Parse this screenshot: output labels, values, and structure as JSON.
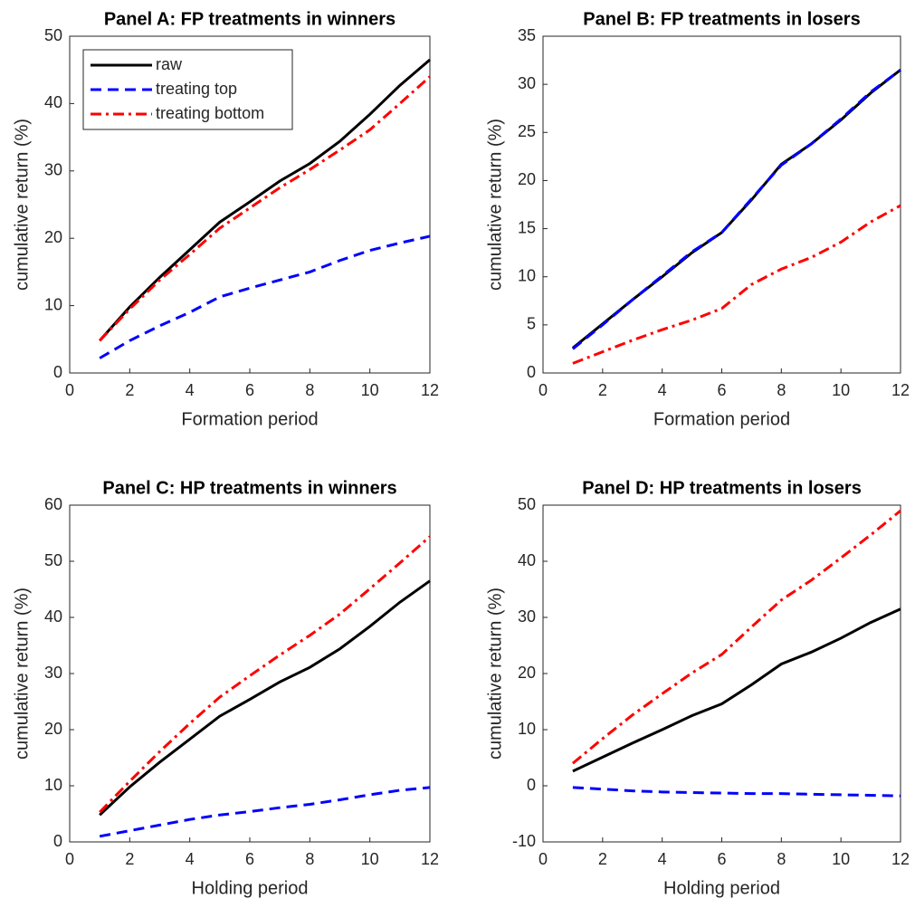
{
  "chart_data": [
    {
      "type": "line",
      "title": "Panel A: FP treatments in winners",
      "xlabel": "Formation period",
      "ylabel": "cumulative return (%)",
      "x": [
        1,
        2,
        3,
        4,
        5,
        6,
        7,
        8,
        9,
        10,
        11,
        12
      ],
      "xlim": [
        0,
        12
      ],
      "xticks": [
        0,
        2,
        4,
        6,
        8,
        10,
        12
      ],
      "ylim": [
        0,
        50
      ],
      "yticks": [
        0,
        10,
        20,
        30,
        40,
        50
      ],
      "legend": "upper left",
      "series": [
        {
          "name": "raw",
          "color": "#000000",
          "dash": "solid",
          "values": [
            4.8,
            9.8,
            14.2,
            18.3,
            22.4,
            25.4,
            28.5,
            31.1,
            34.4,
            38.4,
            42.7,
            46.5
          ]
        },
        {
          "name": "treating top",
          "color": "#0000ff",
          "dash": "dashed",
          "values": [
            2.2,
            4.8,
            7.0,
            9.0,
            11.3,
            12.6,
            13.8,
            15.0,
            16.7,
            18.2,
            19.3,
            20.3
          ]
        },
        {
          "name": "treating bottom",
          "color": "#ff0000",
          "dash": "dashdot",
          "values": [
            4.8,
            9.5,
            13.8,
            17.6,
            21.5,
            24.5,
            27.5,
            30.2,
            33.1,
            36.1,
            40.0,
            44.0
          ]
        }
      ]
    },
    {
      "type": "line",
      "title": "Panel B: FP treatments in losers",
      "xlabel": "Formation period",
      "ylabel": "cumulative return (%)",
      "x": [
        1,
        2,
        3,
        4,
        5,
        6,
        7,
        8,
        9,
        10,
        11,
        12
      ],
      "xlim": [
        0,
        12
      ],
      "xticks": [
        0,
        2,
        4,
        6,
        8,
        10,
        12
      ],
      "ylim": [
        0,
        35
      ],
      "yticks": [
        0,
        5,
        10,
        15,
        20,
        25,
        30,
        35
      ],
      "series": [
        {
          "color": "#000000",
          "dash": "solid",
          "values": [
            2.6,
            5.1,
            7.6,
            10.0,
            12.5,
            14.6,
            18.0,
            21.7,
            23.8,
            26.3,
            29.1,
            31.5
          ]
        },
        {
          "color": "#0000ff",
          "dash": "dashed",
          "values": [
            2.5,
            5.0,
            7.6,
            10.1,
            12.6,
            14.6,
            18.1,
            21.6,
            23.8,
            26.4,
            29.2,
            31.5
          ]
        },
        {
          "color": "#ff0000",
          "dash": "dashdot",
          "values": [
            1.0,
            2.2,
            3.4,
            4.5,
            5.5,
            6.7,
            9.2,
            10.8,
            12.0,
            13.6,
            15.7,
            17.4
          ]
        }
      ]
    },
    {
      "type": "line",
      "title": "Panel C: HP treatments in winners",
      "xlabel": "Holding period",
      "ylabel": "cumulative return (%)",
      "x": [
        1,
        2,
        3,
        4,
        5,
        6,
        7,
        8,
        9,
        10,
        11,
        12
      ],
      "xlim": [
        0,
        12
      ],
      "xticks": [
        0,
        2,
        4,
        6,
        8,
        10,
        12
      ],
      "ylim": [
        0,
        60
      ],
      "yticks": [
        0,
        10,
        20,
        30,
        40,
        50,
        60
      ],
      "series": [
        {
          "color": "#000000",
          "dash": "solid",
          "values": [
            4.8,
            9.8,
            14.2,
            18.3,
            22.4,
            25.4,
            28.5,
            31.1,
            34.4,
            38.4,
            42.7,
            46.5
          ]
        },
        {
          "color": "#0000ff",
          "dash": "dashed",
          "values": [
            1.0,
            2.0,
            3.0,
            4.0,
            4.8,
            5.4,
            6.1,
            6.7,
            7.5,
            8.4,
            9.2,
            9.7
          ]
        },
        {
          "color": "#ff0000",
          "dash": "dashdot",
          "values": [
            5.3,
            10.8,
            16.1,
            21.1,
            25.8,
            29.6,
            33.3,
            36.8,
            40.6,
            45.1,
            49.7,
            54.4
          ]
        }
      ]
    },
    {
      "type": "line",
      "title": "Panel D: HP treatments in losers",
      "xlabel": "Holding period",
      "ylabel": "cumulative return (%)",
      "x": [
        1,
        2,
        3,
        4,
        5,
        6,
        7,
        8,
        9,
        10,
        11,
        12
      ],
      "xlim": [
        0,
        12
      ],
      "xticks": [
        0,
        2,
        4,
        6,
        8,
        10,
        12
      ],
      "ylim": [
        -10,
        50
      ],
      "yticks": [
        -10,
        0,
        10,
        20,
        30,
        40,
        50
      ],
      "series": [
        {
          "color": "#000000",
          "dash": "solid",
          "values": [
            2.6,
            5.1,
            7.6,
            10.0,
            12.5,
            14.6,
            18.0,
            21.7,
            23.8,
            26.3,
            29.1,
            31.5
          ]
        },
        {
          "color": "#0000ff",
          "dash": "dashed",
          "values": [
            -0.3,
            -0.6,
            -0.9,
            -1.1,
            -1.2,
            -1.3,
            -1.4,
            -1.4,
            -1.5,
            -1.6,
            -1.7,
            -1.8
          ]
        },
        {
          "color": "#ff0000",
          "dash": "dashdot",
          "values": [
            4.0,
            8.4,
            12.6,
            16.4,
            20.1,
            23.4,
            28.3,
            33.1,
            36.6,
            40.6,
            44.7,
            49.0
          ]
        }
      ]
    }
  ]
}
